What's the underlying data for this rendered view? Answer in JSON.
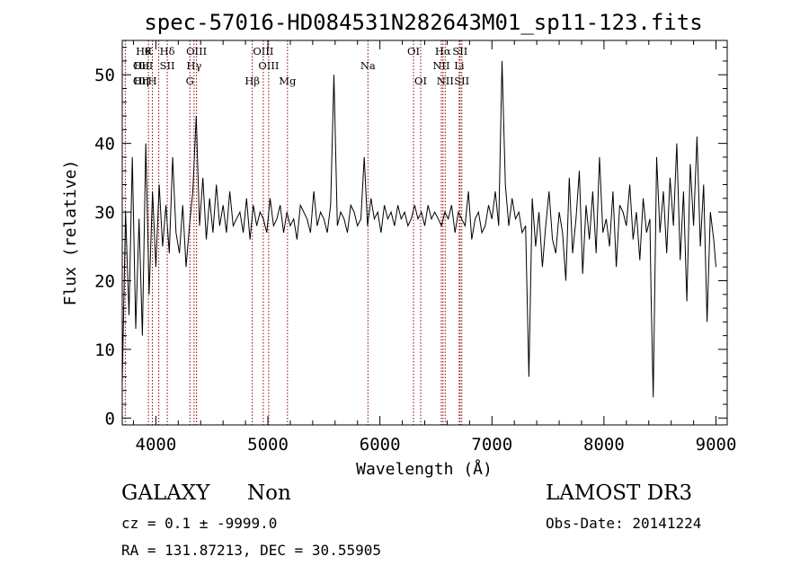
{
  "chart_data": {
    "type": "line",
    "title": "spec-57016-HD084531N282643M01_sp11-123.fits",
    "xlabel": "Wavelength (Å)",
    "ylabel": "Flux (relative)",
    "xlim": [
      3700,
      9100
    ],
    "ylim": [
      -1,
      55
    ],
    "xticks": [
      4000,
      5000,
      6000,
      7000,
      8000,
      9000
    ],
    "yticks": [
      0,
      10,
      20,
      30,
      40,
      50
    ],
    "grid": false,
    "series": [
      {
        "color": "#000000",
        "x": [
          3700,
          3730,
          3760,
          3790,
          3820,
          3850,
          3880,
          3910,
          3940,
          3970,
          4000,
          4030,
          4060,
          4090,
          4120,
          4150,
          4180,
          4210,
          4240,
          4270,
          4300,
          4330,
          4360,
          4390,
          4420,
          4450,
          4480,
          4510,
          4540,
          4570,
          4600,
          4630,
          4660,
          4690,
          4720,
          4750,
          4780,
          4810,
          4840,
          4870,
          4900,
          4930,
          4960,
          4990,
          5020,
          5050,
          5080,
          5110,
          5140,
          5170,
          5200,
          5230,
          5260,
          5290,
          5320,
          5350,
          5380,
          5410,
          5440,
          5470,
          5500,
          5530,
          5560,
          5590,
          5620,
          5650,
          5680,
          5710,
          5740,
          5770,
          5800,
          5830,
          5860,
          5890,
          5920,
          5950,
          5980,
          6010,
          6040,
          6070,
          6100,
          6130,
          6160,
          6190,
          6220,
          6250,
          6280,
          6310,
          6340,
          6370,
          6400,
          6430,
          6460,
          6490,
          6520,
          6550,
          6580,
          6610,
          6640,
          6670,
          6700,
          6730,
          6760,
          6790,
          6820,
          6850,
          6880,
          6910,
          6940,
          6970,
          7000,
          7030,
          7060,
          7090,
          7120,
          7150,
          7180,
          7210,
          7240,
          7270,
          7300,
          7330,
          7360,
          7390,
          7420,
          7450,
          7480,
          7510,
          7540,
          7570,
          7600,
          7630,
          7660,
          7690,
          7720,
          7750,
          7780,
          7810,
          7840,
          7870,
          7900,
          7930,
          7960,
          7990,
          8020,
          8050,
          8080,
          8110,
          8140,
          8170,
          8200,
          8230,
          8260,
          8290,
          8320,
          8350,
          8380,
          8410,
          8420,
          8440,
          8470,
          8500,
          8530,
          8560,
          8590,
          8620,
          8650,
          8680,
          8710,
          8740,
          8770,
          8800,
          8830,
          8860,
          8890,
          8920,
          8950,
          8980,
          9000
        ],
        "values": [
          5,
          30,
          15,
          38,
          13,
          29,
          12,
          40,
          18,
          33,
          22,
          34,
          25,
          31,
          24,
          38,
          27,
          24,
          31,
          22,
          28,
          33,
          44,
          28,
          35,
          26,
          32,
          27,
          34,
          28,
          31,
          27,
          33,
          28,
          29,
          30,
          27,
          32,
          26,
          31,
          28,
          30,
          29,
          27,
          32,
          28,
          29,
          31,
          27,
          30,
          28,
          29,
          26,
          31,
          30,
          29,
          27,
          33,
          28,
          30,
          29,
          27,
          31,
          50,
          28,
          30,
          29,
          27,
          31,
          30,
          28,
          29,
          38,
          28,
          32,
          29,
          30,
          27,
          31,
          29,
          30,
          28,
          31,
          29,
          30,
          28,
          29,
          31,
          29,
          30,
          28,
          31,
          29,
          30,
          29,
          28,
          30,
          29,
          31,
          27,
          30,
          29,
          28,
          33,
          26,
          29,
          30,
          27,
          28,
          31,
          29,
          33,
          28,
          52,
          34,
          28,
          32,
          29,
          30,
          27,
          28,
          6,
          32,
          25,
          30,
          22,
          28,
          33,
          26,
          24,
          30,
          27,
          20,
          35,
          24,
          29,
          36,
          21,
          31,
          26,
          33,
          24,
          38,
          27,
          29,
          25,
          33,
          22,
          31,
          30,
          28,
          34,
          26,
          30,
          23,
          32,
          27,
          29,
          18,
          3,
          38,
          27,
          33,
          24,
          35,
          28,
          40,
          23,
          33,
          17,
          37,
          28,
          41,
          25,
          34,
          14,
          30,
          26,
          22
        ],
        "name": ""
      }
    ],
    "line_color": "#8B0000",
    "lines": [
      {
        "x": 3934,
        "label": "K",
        "row": 0
      },
      {
        "x": 3969,
        "label": "H",
        "row": 2
      },
      {
        "x": 3727,
        "label": "OII",
        "row": 1
      },
      {
        "x": 3727,
        "label": "OII",
        "row": 2
      },
      {
        "x": 4026,
        "label": "",
        "row": -1
      },
      {
        "x": 4102,
        "label": "Hδ",
        "row": 0
      },
      {
        "x": 4102,
        "label": "SII",
        "row": 1
      },
      {
        "x": 4102,
        "label": "",
        "row": -1
      },
      {
        "x": 4341,
        "label": "Hγ",
        "row": 1
      },
      {
        "x": 4304,
        "label": "G",
        "row": 2
      },
      {
        "x": 4363,
        "label": "OIII",
        "row": 0
      },
      {
        "x": 4861,
        "label": "Hβ",
        "row": 2
      },
      {
        "x": 4959,
        "label": "OIII",
        "row": 0
      },
      {
        "x": 5007,
        "label": "OIII",
        "row": 1
      },
      {
        "x": 5175,
        "label": "Mg",
        "row": 2
      },
      {
        "x": 5893,
        "label": "Na",
        "row": 1
      },
      {
        "x": 6300,
        "label": "OI",
        "row": 0
      },
      {
        "x": 6364,
        "label": "OI",
        "row": 2
      },
      {
        "x": 6548,
        "label": "NII",
        "row": 1
      },
      {
        "x": 6563,
        "label": "Hα",
        "row": 0
      },
      {
        "x": 6583,
        "label": "NII",
        "row": 2
      },
      {
        "x": 6708,
        "label": "Li",
        "row": 1
      },
      {
        "x": 6716,
        "label": "SII",
        "row": 0
      },
      {
        "x": 6731,
        "label": "SII",
        "row": 2
      }
    ],
    "extra_labels": [
      {
        "x": 3835,
        "label": "Hη",
        "row": 2
      },
      {
        "x": 3889,
        "label": "Hθ",
        "row": 0
      },
      {
        "x": 3889,
        "label": "HeI",
        "row": 1
      }
    ]
  },
  "info": {
    "class": "GALAXY",
    "subclass": "Non",
    "survey": "LAMOST DR3",
    "cz": "cz = 0.1 ± -9999.0",
    "obs_date": "Obs-Date: 20141224",
    "coords": "RA = 131.87213, DEC =  30.55905"
  }
}
